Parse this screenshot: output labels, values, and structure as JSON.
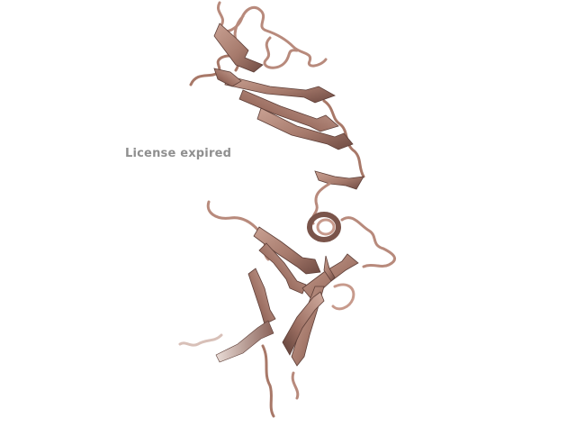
{
  "watermark": {
    "text": "License expired"
  },
  "colors": {
    "background": "#ffffff",
    "ribbon_light": "#c79a8c",
    "ribbon_mid": "#a87868",
    "ribbon_dark": "#6e4a42",
    "coil": "#b88a7c",
    "watermark": "#8f8f8f"
  },
  "icons": {
    "structure": "protein-ribbon-structure"
  }
}
